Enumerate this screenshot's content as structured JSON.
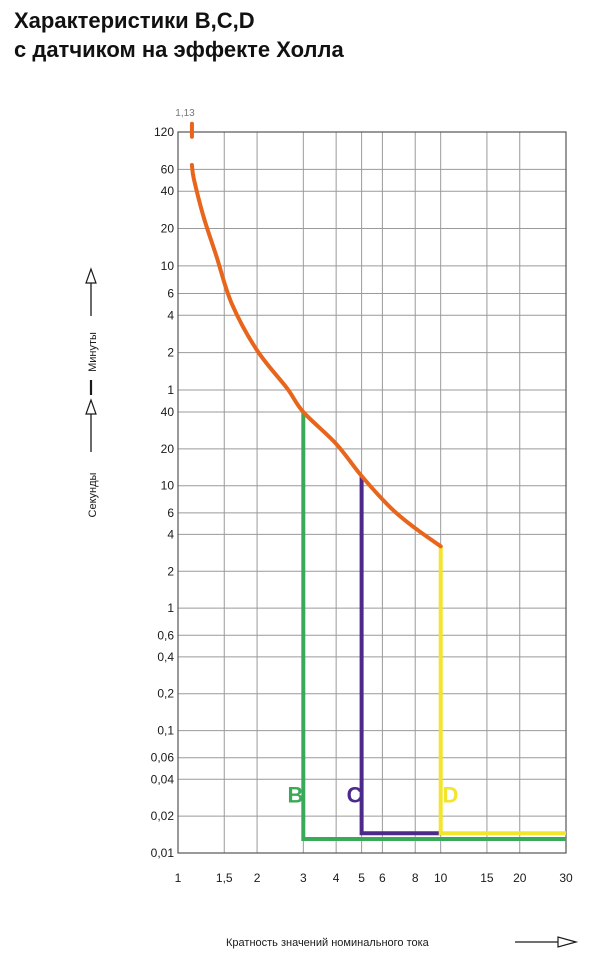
{
  "title_line1": "Характеристики B,C,D",
  "title_line2": "с датчиком на эффекте Холла",
  "chart_data": {
    "type": "line",
    "title": "Характеристики B,C,D с датчиком на эффекте Холла",
    "xlabel": "Кратность значений номинального тока",
    "y_axis_label_seconds": "Секунды",
    "y_axis_label_minutes": "Минуты",
    "x_scale": "log",
    "y_scale": "log",
    "xlim": [
      1,
      30
    ],
    "ylim_seconds": [
      0.01,
      7200
    ],
    "grid": true,
    "x_ticks": [
      1,
      1.5,
      2,
      3,
      4,
      5,
      6,
      8,
      10,
      15,
      20,
      30
    ],
    "x_tick_labels": [
      "1",
      "1,5",
      "2",
      "3",
      "4",
      "5",
      "6",
      "8",
      "10",
      "15",
      "20",
      "30"
    ],
    "y_ticks_minutes": [
      {
        "value_s": 7200,
        "label": "120"
      },
      {
        "value_s": 3600,
        "label": "60"
      },
      {
        "value_s": 2400,
        "label": "40"
      },
      {
        "value_s": 1200,
        "label": "20"
      },
      {
        "value_s": 600,
        "label": "10"
      },
      {
        "value_s": 360,
        "label": "6"
      },
      {
        "value_s": 240,
        "label": "4"
      },
      {
        "value_s": 120,
        "label": "2"
      },
      {
        "value_s": 60,
        "label": "1"
      }
    ],
    "y_ticks_seconds": [
      {
        "value_s": 40,
        "label": "40"
      },
      {
        "value_s": 20,
        "label": "20"
      },
      {
        "value_s": 10,
        "label": "10"
      },
      {
        "value_s": 6,
        "label": "6"
      },
      {
        "value_s": 4,
        "label": "4"
      },
      {
        "value_s": 2,
        "label": "2"
      },
      {
        "value_s": 1,
        "label": "1"
      },
      {
        "value_s": 0.6,
        "label": "0,6"
      },
      {
        "value_s": 0.4,
        "label": "0,4"
      },
      {
        "value_s": 0.2,
        "label": "0,2"
      },
      {
        "value_s": 0.1,
        "label": "0,1"
      },
      {
        "value_s": 0.06,
        "label": "0,06"
      },
      {
        "value_s": 0.04,
        "label": "0,04"
      },
      {
        "value_s": 0.02,
        "label": "0,02"
      },
      {
        "value_s": 0.01,
        "label": "0,01"
      }
    ],
    "annotation": {
      "text": "1,13",
      "x": 1.13,
      "y_s": 7200
    },
    "thermal_curve": {
      "color": "#e8651c",
      "top_segment": [
        [
          1.13,
          6600
        ],
        [
          1.13,
          8400
        ]
      ],
      "points": [
        [
          1.13,
          3900
        ],
        [
          1.15,
          3000
        ],
        [
          1.25,
          1500
        ],
        [
          1.4,
          720
        ],
        [
          1.6,
          300
        ],
        [
          2.0,
          125
        ],
        [
          2.6,
          62
        ],
        [
          3.0,
          40
        ],
        [
          4.0,
          22
        ],
        [
          5.0,
          12
        ],
        [
          6.5,
          6.5
        ],
        [
          8.0,
          4.5
        ],
        [
          10.0,
          3.2
        ]
      ]
    },
    "series": [
      {
        "name": "B",
        "color": "#3aaa5a",
        "points": [
          [
            3,
            40
          ],
          [
            3,
            0.013
          ],
          [
            30,
            0.013
          ]
        ]
      },
      {
        "name": "C",
        "color": "#4b2a8c",
        "points": [
          [
            5,
            12
          ],
          [
            5,
            0.0145
          ],
          [
            10,
            0.0145
          ]
        ]
      },
      {
        "name": "D",
        "color": "#f2e52c",
        "points": [
          [
            10,
            3.2
          ],
          [
            10,
            0.0145
          ],
          [
            30,
            0.0145
          ]
        ]
      }
    ],
    "curve_labels": [
      {
        "text": "B",
        "x": 2.8,
        "y_s": 0.03,
        "color": "#3aaa5a"
      },
      {
        "text": "C",
        "x": 4.7,
        "y_s": 0.03,
        "color": "#4b2a8c"
      },
      {
        "text": "D",
        "x": 10.9,
        "y_s": 0.03,
        "color": "#f2e52c"
      }
    ]
  },
  "colors": {
    "grid": "#9a9a9a",
    "text": "#1a1a1a"
  }
}
